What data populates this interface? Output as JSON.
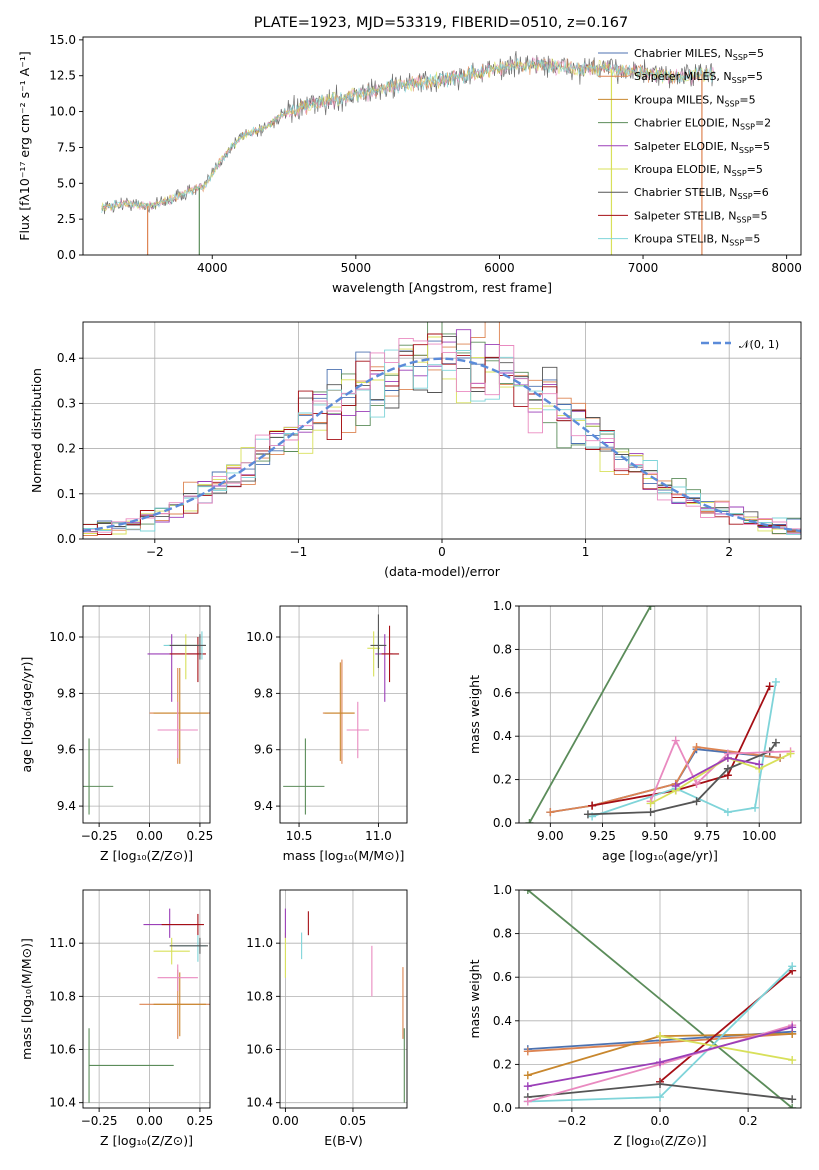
{
  "figure_title": "PLATE=1923, MJD=53319, FIBERID=0510, z=0.167",
  "colors": {
    "Chabrier MILES": "#4c72b0",
    "Salpeter MILES": "#dd8452",
    "Kroupa MILES": "#c8872e",
    "Chabrier ELODIE": "#5b8c5a",
    "Salpeter ELODIE": "#9b3fb8",
    "Kroupa ELODIE": "#d8e05a",
    "Chabrier STELIB": "#555555",
    "Salpeter STELIB": "#a50f15",
    "Kroupa STELIB": "#7fd4d9",
    "pink": "#e98ac0",
    "norm": "#5b8bd9"
  },
  "chart_data": [
    {
      "id": "spectrum",
      "type": "line",
      "title": "PLATE=1923, MJD=53319, FIBERID=0510, z=0.167",
      "xlabel": "wavelength [Angstrom, rest frame]",
      "ylabel": "Flux [fλ10⁻¹⁷ erg cm⁻² s⁻¹ A⁻¹]",
      "xlim": [
        3100,
        8100
      ],
      "ylim": [
        0,
        15.2
      ],
      "xticks": [
        "4000",
        "5000",
        "6000",
        "7000",
        "8000"
      ],
      "yticks": [
        "0.0",
        "2.5",
        "5.0",
        "7.5",
        "10.0",
        "12.5",
        "15.0"
      ],
      "legend_position": "right",
      "legend": [
        {
          "label": "Chabrier MILES, N",
          "sub": "SSP",
          "suffix": "=5"
        },
        {
          "label": "Salpeter MILES, N",
          "sub": "SSP",
          "suffix": "=5"
        },
        {
          "label": "Kroupa MILES, N",
          "sub": "SSP",
          "suffix": "=5"
        },
        {
          "label": "Chabrier ELODIE, N",
          "sub": "SSP",
          "suffix": "=2"
        },
        {
          "label": "Salpeter ELODIE, N",
          "sub": "SSP",
          "suffix": "=5"
        },
        {
          "label": "Kroupa ELODIE, N",
          "sub": "SSP",
          "suffix": "=5"
        },
        {
          "label": "Chabrier STELIB, N",
          "sub": "SSP",
          "suffix": "=6"
        },
        {
          "label": "Salpeter STELIB, N",
          "sub": "SSP",
          "suffix": "=5"
        },
        {
          "label": "Kroupa STELIB, N",
          "sub": "SSP",
          "suffix": "=5"
        }
      ],
      "envelope": {
        "x": [
          3230,
          3400,
          3550,
          3700,
          3850,
          3950,
          4050,
          4200,
          4350,
          4500,
          4700,
          4900,
          5100,
          5300,
          5500,
          5700,
          5900,
          6100,
          6300,
          6500,
          6700,
          6900,
          7100,
          7300,
          7500
        ],
        "y": [
          3.3,
          3.6,
          3.4,
          3.8,
          4.5,
          4.8,
          6.5,
          8.3,
          8.8,
          9.8,
          10.5,
          10.9,
          11.4,
          11.9,
          12.0,
          12.4,
          12.8,
          13.2,
          13.3,
          13.0,
          13.0,
          12.9,
          12.5,
          12.5,
          12.7
        ]
      },
      "dips": [
        {
          "x": 3550,
          "color": "Salpeter MILES"
        },
        {
          "x": 3910,
          "color": "Chabrier ELODIE"
        },
        {
          "x": 6780,
          "color": "Kroupa ELODIE"
        },
        {
          "x": 7410,
          "color": "Salpeter MILES"
        }
      ]
    },
    {
      "id": "residuals",
      "type": "histogram",
      "xlabel": "(data-model)/error",
      "ylabel": "Normed distribution",
      "xlim": [
        -2.5,
        2.5
      ],
      "ylim": [
        0,
        0.48
      ],
      "xticks": [
        "−2",
        "−1",
        "0",
        "1",
        "2"
      ],
      "yticks": [
        "0.0",
        "0.1",
        "0.2",
        "0.3",
        "0.4"
      ],
      "legend": "𝒩(0, 1)",
      "legend_position": "top-right"
    },
    {
      "id": "age_vs_Z",
      "type": "scatter",
      "xlabel": "Z [log₁₀(Z/Z⊙)]",
      "ylabel": "age  [log₁₀(age/yr)]",
      "xlim": [
        -0.33,
        0.3
      ],
      "ylim": [
        9.34,
        10.11
      ],
      "xticks": [
        "−0.25",
        "0.00",
        "0.25"
      ],
      "yticks": [
        "9.4",
        "9.6",
        "9.8",
        "10.0"
      ],
      "points": [
        {
          "model": "Chabrier ELODIE",
          "x": -0.3,
          "xerr": [
            0.3,
            0.12
          ],
          "y": 9.47,
          "yerr": [
            0.1,
            0.17
          ]
        },
        {
          "model": "Salpeter MILES",
          "x": 0.14,
          "xerr": [
            0.14,
            0.16
          ],
          "y": 9.73,
          "yerr": [
            0.18,
            0.16
          ]
        },
        {
          "model": "Kroupa MILES",
          "x": 0.15,
          "xerr": [
            0.13,
            0.14
          ],
          "y": 9.73,
          "yerr": [
            0.18,
            0.16
          ]
        },
        {
          "model": "pink",
          "x": 0.14,
          "xerr": [
            0.1,
            0.1
          ],
          "y": 9.67,
          "yerr": [
            0.1,
            0.1
          ]
        },
        {
          "model": "Salpeter ELODIE",
          "x": 0.11,
          "xerr": [
            0.12,
            0.15
          ],
          "y": 9.94,
          "yerr": [
            0.17,
            0.07
          ]
        },
        {
          "model": "Salpeter STELIB",
          "x": 0.24,
          "xerr": [
            0.14,
            0.04
          ],
          "y": 9.94,
          "yerr": [
            0.1,
            0.06
          ]
        },
        {
          "model": "Kroupa ELODIE",
          "x": 0.18,
          "xerr": [
            0.09,
            0.06
          ],
          "y": 9.97,
          "yerr": [
            0.12,
            0.04
          ]
        },
        {
          "model": "Kroupa STELIB",
          "x": 0.26,
          "xerr": [
            0.19,
            0.02
          ],
          "y": 9.97,
          "yerr": [
            0.05,
            0.05
          ]
        },
        {
          "model": "Chabrier STELIB",
          "x": 0.25,
          "xerr": [
            0.15,
            0.03
          ],
          "y": 9.97,
          "yerr": [
            0.05,
            0.04
          ]
        }
      ]
    },
    {
      "id": "age_vs_mass",
      "type": "scatter",
      "xlabel": "mass [log₁₀(M/M⊙)]",
      "ylabel": "",
      "xlim": [
        10.38,
        11.18
      ],
      "ylim": [
        9.34,
        10.11
      ],
      "xticks": [
        "10.5",
        "11.0"
      ],
      "yticks": [
        "9.4",
        "9.6",
        "9.8",
        "10.0"
      ],
      "points": [
        {
          "model": "Chabrier ELODIE",
          "x": 10.54,
          "xerr": [
            0.14,
            0.12
          ],
          "y": 9.47,
          "yerr": [
            0.1,
            0.17
          ]
        },
        {
          "model": "Salpeter MILES",
          "x": 10.77,
          "xerr": [
            0.12,
            0.08
          ],
          "y": 9.73,
          "yerr": [
            0.18,
            0.19
          ]
        },
        {
          "model": "Kroupa MILES",
          "x": 10.76,
          "xerr": [
            0.1,
            0.09
          ],
          "y": 9.73,
          "yerr": [
            0.17,
            0.18
          ]
        },
        {
          "model": "pink",
          "x": 10.87,
          "xerr": [
            0.07,
            0.07
          ],
          "y": 9.67,
          "yerr": [
            0.1,
            0.1
          ]
        },
        {
          "model": "Kroupa ELODIE",
          "x": 10.97,
          "xerr": [
            0.04,
            0.04
          ],
          "y": 9.96,
          "yerr": [
            0.1,
            0.06
          ]
        },
        {
          "model": "Salpeter ELODIE",
          "x": 11.04,
          "xerr": [
            0.06,
            0.05
          ],
          "y": 9.94,
          "yerr": [
            0.17,
            0.07
          ]
        },
        {
          "model": "Salpeter STELIB",
          "x": 11.07,
          "xerr": [
            0.05,
            0.06
          ],
          "y": 9.94,
          "yerr": [
            0.1,
            0.1
          ]
        },
        {
          "model": "Kroupa STELIB",
          "x": 11.0,
          "xerr": [
            0.04,
            0.04
          ],
          "y": 9.97,
          "yerr": [
            0.08,
            0.05
          ]
        },
        {
          "model": "Chabrier STELIB",
          "x": 11.0,
          "xerr": [
            0.05,
            0.05
          ],
          "y": 9.97,
          "yerr": [
            0.08,
            0.11
          ]
        }
      ]
    },
    {
      "id": "weight_vs_age",
      "type": "line",
      "xlabel": "age  [log₁₀(age/yr)]",
      "ylabel": "mass weight",
      "xlim": [
        8.85,
        10.2
      ],
      "ylim": [
        0,
        1.0
      ],
      "xticks": [
        "9.00",
        "9.25",
        "9.50",
        "9.75",
        "10.00"
      ],
      "yticks": [
        "0.0",
        "0.2",
        "0.4",
        "0.6",
        "0.8",
        "1.0"
      ],
      "series": [
        {
          "model": "Chabrier ELODIE",
          "x": [
            8.9,
            9.48
          ],
          "y": [
            0.0,
            1.0
          ]
        },
        {
          "model": "Chabrier MILES",
          "x": [
            9.0,
            9.2,
            9.6,
            9.7,
            10.1
          ],
          "y": [
            0.05,
            0.08,
            0.18,
            0.34,
            0.3
          ]
        },
        {
          "model": "Salpeter MILES",
          "x": [
            9.0,
            9.2,
            9.6,
            9.7,
            10.1
          ],
          "y": [
            0.05,
            0.08,
            0.18,
            0.35,
            0.3
          ]
        },
        {
          "model": "Salpeter STELIB",
          "x": [
            9.2,
            9.6,
            9.85,
            10.05
          ],
          "y": [
            0.08,
            0.15,
            0.22,
            0.63
          ]
        },
        {
          "model": "Kroupa STELIB",
          "x": [
            9.2,
            9.6,
            9.85,
            9.98,
            10.08
          ],
          "y": [
            0.03,
            0.16,
            0.05,
            0.07,
            0.65
          ]
        },
        {
          "model": "Chabrier STELIB",
          "x": [
            9.18,
            9.48,
            9.7,
            9.85,
            10.05,
            10.08
          ],
          "y": [
            0.04,
            0.05,
            0.1,
            0.25,
            0.33,
            0.37
          ]
        },
        {
          "model": "pink",
          "x": [
            9.48,
            9.6,
            9.7,
            9.85,
            10.15
          ],
          "y": [
            0.1,
            0.38,
            0.18,
            0.32,
            0.33
          ]
        },
        {
          "model": "Kroupa ELODIE",
          "x": [
            9.48,
            9.6,
            9.85,
            10.0,
            10.15
          ],
          "y": [
            0.09,
            0.15,
            0.3,
            0.25,
            0.32
          ]
        },
        {
          "model": "Salpeter ELODIE",
          "x": [
            9.6,
            9.85,
            10.0
          ],
          "y": [
            0.17,
            0.3,
            0.27
          ]
        }
      ]
    },
    {
      "id": "mass_vs_Z",
      "type": "scatter",
      "xlabel": "Z [log₁₀(Z/Z⊙)]",
      "ylabel": "mass [log₁₀(M/M⊙)]",
      "xlim": [
        -0.33,
        0.3
      ],
      "ylim": [
        10.38,
        11.2
      ],
      "xticks": [
        "−0.25",
        "0.00",
        "0.25"
      ],
      "yticks": [
        "10.4",
        "10.6",
        "10.8",
        "11.0"
      ],
      "points": [
        {
          "model": "Chabrier ELODIE",
          "x": -0.3,
          "xerr": [
            0.0,
            0.42
          ],
          "y": 10.54,
          "yerr": [
            0.14,
            0.14
          ]
        },
        {
          "model": "Salpeter MILES",
          "x": 0.14,
          "xerr": [
            0.19,
            0.16
          ],
          "y": 10.77,
          "yerr": [
            0.13,
            0.13
          ]
        },
        {
          "model": "Kroupa MILES",
          "x": 0.15,
          "xerr": [
            0.13,
            0.13
          ],
          "y": 10.77,
          "yerr": [
            0.12,
            0.12
          ]
        },
        {
          "model": "pink",
          "x": 0.14,
          "xerr": [
            0.1,
            0.1
          ],
          "y": 10.87,
          "yerr": [
            0.05,
            0.05
          ]
        },
        {
          "model": "Kroupa ELODIE",
          "x": 0.11,
          "xerr": [
            0.09,
            0.09
          ],
          "y": 10.97,
          "yerr": [
            0.05,
            0.05
          ]
        },
        {
          "model": "Salpeter ELODIE",
          "x": 0.1,
          "xerr": [
            0.13,
            0.13
          ],
          "y": 11.07,
          "yerr": [
            0.05,
            0.06
          ]
        },
        {
          "model": "Salpeter STELIB",
          "x": 0.24,
          "xerr": [
            0.18,
            0.03
          ],
          "y": 11.07,
          "yerr": [
            0.04,
            0.04
          ]
        },
        {
          "model": "Kroupa STELIB",
          "x": 0.24,
          "xerr": [
            0.12,
            0.04
          ],
          "y": 10.99,
          "yerr": [
            0.06,
            0.04
          ]
        },
        {
          "model": "Chabrier STELIB",
          "x": 0.25,
          "xerr": [
            0.15,
            0.04
          ],
          "y": 10.99,
          "yerr": [
            0.03,
            0.03
          ]
        }
      ]
    },
    {
      "id": "mass_vs_ebv",
      "type": "scatter",
      "xlabel": "E(B-V)",
      "ylabel": "",
      "xlim": [
        -0.004,
        0.09
      ],
      "ylim": [
        10.38,
        11.2
      ],
      "xticks": [
        "0.00",
        "0.05"
      ],
      "yticks": [
        "10.4",
        "10.6",
        "10.8",
        "11.0"
      ],
      "points": [
        {
          "model": "Chabrier ELODIE",
          "x": 0.088,
          "y": 10.54,
          "yerr": [
            0.14,
            0.14
          ]
        },
        {
          "model": "Salpeter MILES",
          "x": 0.087,
          "y": 10.77,
          "yerr": [
            0.13,
            0.14
          ]
        },
        {
          "model": "pink",
          "x": 0.064,
          "y": 10.87,
          "yerr": [
            0.07,
            0.12
          ]
        },
        {
          "model": "Kroupa ELODIE",
          "x": 0.0,
          "y": 10.97,
          "yerr": [
            0.1,
            0.07
          ]
        },
        {
          "model": "Salpeter ELODIE",
          "x": 0.0,
          "y": 11.07,
          "yerr": [
            0.05,
            0.06
          ]
        },
        {
          "model": "Salpeter STELIB",
          "x": 0.017,
          "y": 11.07,
          "yerr": [
            0.04,
            0.05
          ]
        },
        {
          "model": "Kroupa STELIB",
          "x": 0.012,
          "y": 10.99,
          "yerr": [
            0.05,
            0.05
          ]
        }
      ]
    },
    {
      "id": "weight_vs_Z",
      "type": "line",
      "xlabel": "Z [log₁₀(Z/Z⊙)]",
      "ylabel": "mass weight",
      "xlim": [
        -0.32,
        0.32
      ],
      "ylim": [
        0,
        1.0
      ],
      "xticks": [
        "−0.2",
        "0.0",
        "0.2"
      ],
      "yticks": [
        "0.0",
        "0.2",
        "0.4",
        "0.6",
        "0.8",
        "1.0"
      ],
      "series": [
        {
          "model": "Chabrier ELODIE",
          "x": [
            -0.3,
            0.3
          ],
          "y": [
            1.0,
            0.0
          ]
        },
        {
          "model": "Chabrier MILES",
          "x": [
            -0.3,
            0.0,
            0.3
          ],
          "y": [
            0.27,
            0.31,
            0.35
          ]
        },
        {
          "model": "Salpeter MILES",
          "x": [
            -0.3,
            0.0,
            0.3
          ],
          "y": [
            0.26,
            0.3,
            0.34
          ]
        },
        {
          "model": "Kroupa MILES",
          "x": [
            -0.3,
            0.0,
            0.3
          ],
          "y": [
            0.15,
            0.33,
            0.34
          ]
        },
        {
          "model": "Salpeter STELIB",
          "x": [
            0.0,
            0.3
          ],
          "y": [
            0.12,
            0.63
          ]
        },
        {
          "model": "Kroupa STELIB",
          "x": [
            -0.3,
            0.0,
            0.3
          ],
          "y": [
            0.03,
            0.05,
            0.65
          ]
        },
        {
          "model": "Chabrier STELIB",
          "x": [
            -0.3,
            0.0,
            0.3
          ],
          "y": [
            0.05,
            0.11,
            0.04
          ]
        },
        {
          "model": "pink",
          "x": [
            -0.3,
            0.0,
            0.3
          ],
          "y": [
            0.03,
            0.2,
            0.38
          ]
        },
        {
          "model": "Kroupa ELODIE",
          "x": [
            0.0,
            0.3
          ],
          "y": [
            0.33,
            0.22
          ]
        },
        {
          "model": "Salpeter ELODIE",
          "x": [
            -0.3,
            0.0,
            0.3
          ],
          "y": [
            0.1,
            0.21,
            0.37
          ]
        }
      ]
    }
  ]
}
